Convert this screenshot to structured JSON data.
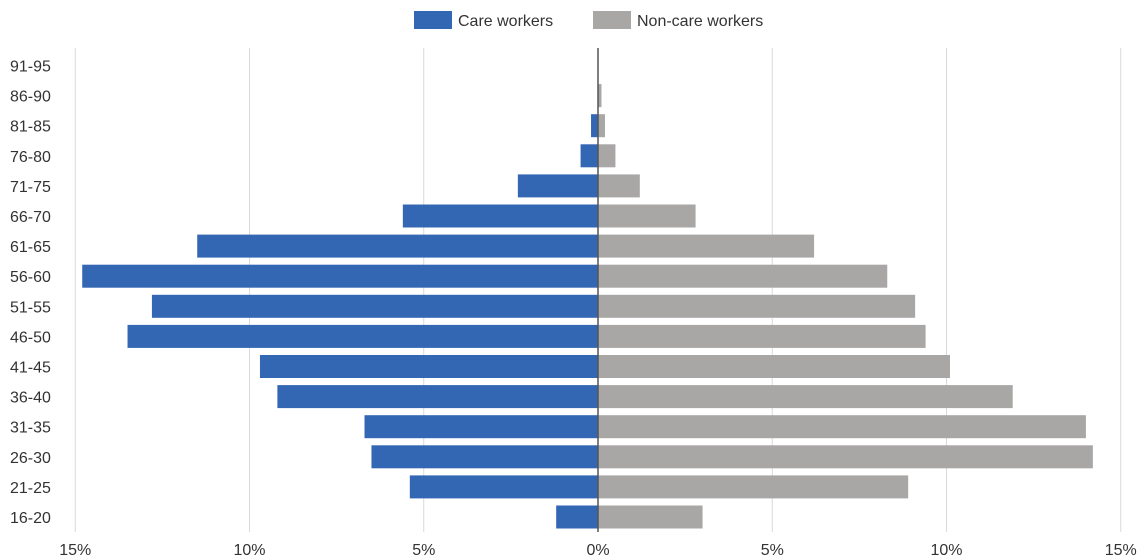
{
  "chart_data": {
    "type": "bar",
    "orientation": "horizontal",
    "layout": "population-pyramid",
    "categories": [
      "16-20",
      "21-25",
      "26-30",
      "31-35",
      "36-40",
      "41-45",
      "46-50",
      "51-55",
      "56-60",
      "61-65",
      "66-70",
      "71-75",
      "76-80",
      "81-85",
      "86-90",
      "91-95"
    ],
    "series": [
      {
        "name": "Care workers",
        "side": "left",
        "color": "#3366b3",
        "values": [
          1.2,
          5.4,
          6.5,
          6.7,
          9.2,
          9.7,
          13.5,
          12.8,
          14.8,
          11.5,
          5.6,
          2.3,
          0.5,
          0.2,
          0.0,
          0.0
        ]
      },
      {
        "name": "Non-care workers",
        "side": "right",
        "color": "#a9a6a6",
        "values": [
          3.0,
          8.9,
          14.2,
          14.0,
          11.9,
          10.1,
          9.4,
          9.1,
          8.3,
          6.2,
          2.8,
          1.2,
          0.5,
          0.2,
          0.1,
          0.0
        ]
      }
    ],
    "x_ticks": [
      "15%",
      "10%",
      "5%",
      "0%",
      "5%",
      "10%",
      "15%"
    ],
    "x_tick_values": [
      -15,
      -10,
      -5,
      0,
      5,
      10,
      15
    ],
    "xlim": [
      -15,
      15
    ],
    "xlabel": "",
    "ylabel": "",
    "title": "",
    "grid": "vertical",
    "legend_position": "top-center"
  }
}
